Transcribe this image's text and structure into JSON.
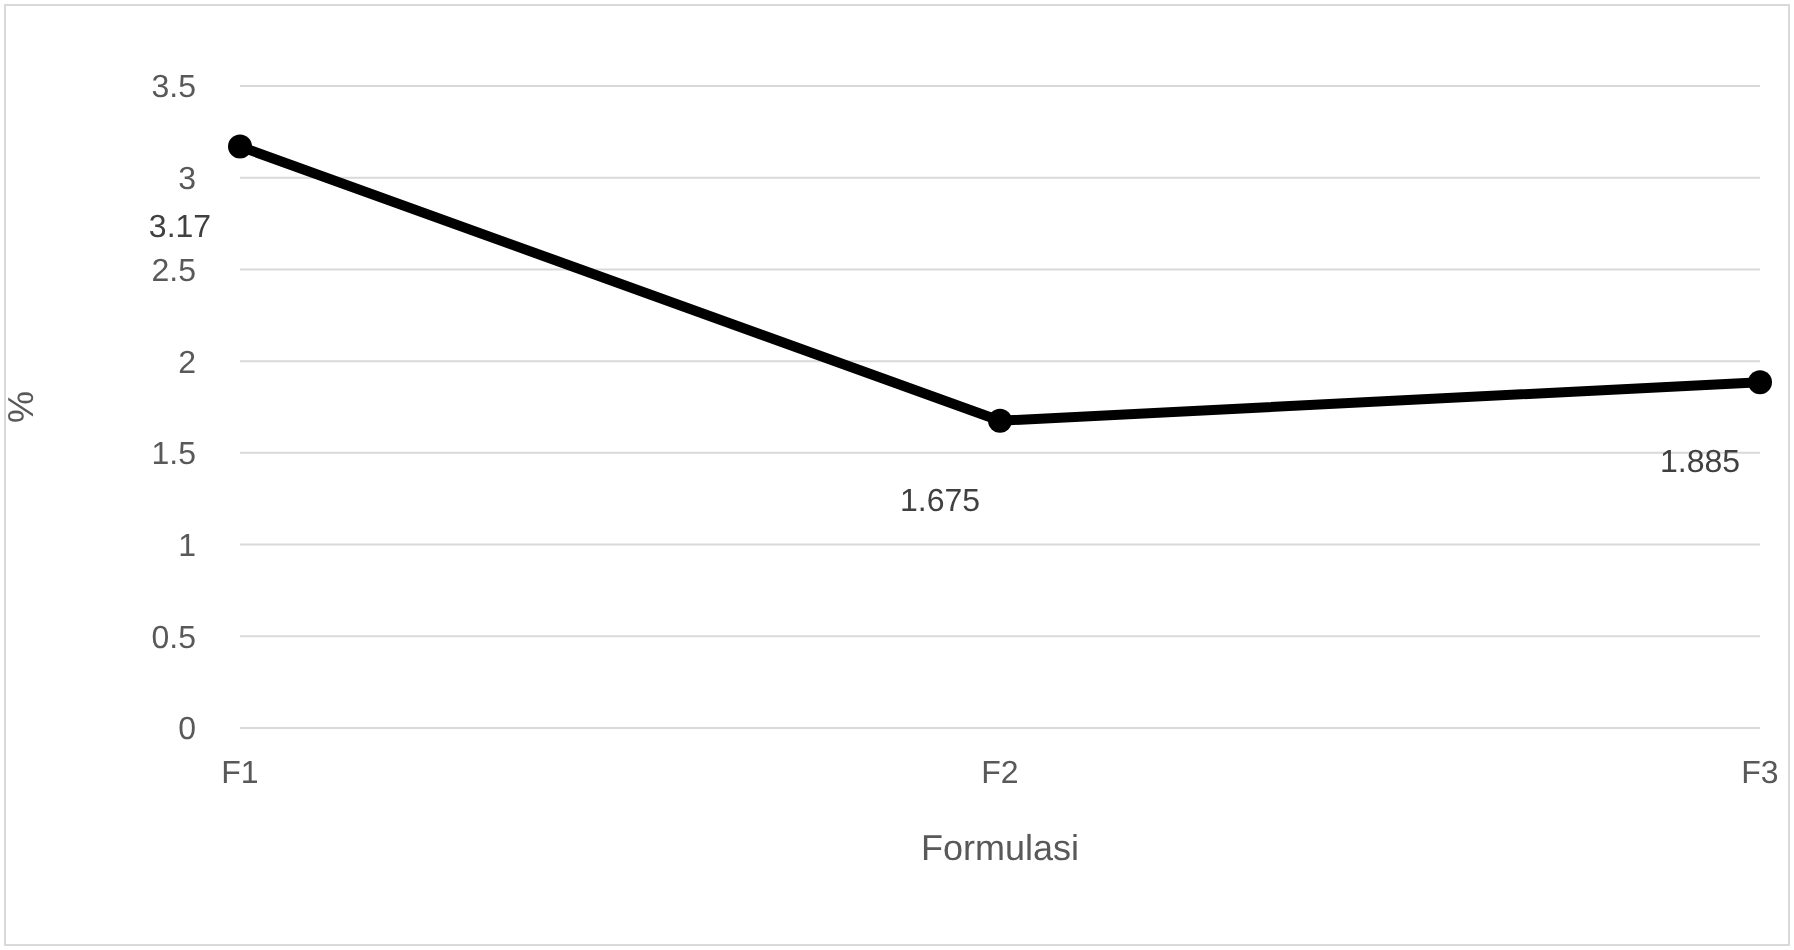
{
  "chart_data": {
    "type": "line",
    "xlabel": "Formulasi",
    "ylabel": "%",
    "categories": [
      "F1",
      "F2",
      "F3"
    ],
    "series": [
      {
        "color": "#000000",
        "values": [
          3.17,
          1.675,
          1.885
        ]
      }
    ],
    "ylim": [
      0,
      3.5
    ],
    "yticks": [
      0,
      0.5,
      1,
      1.5,
      2,
      2.5,
      3,
      3.5
    ],
    "grid": "y",
    "marker": "circle",
    "line_style": "solid",
    "data_labels": true
  }
}
